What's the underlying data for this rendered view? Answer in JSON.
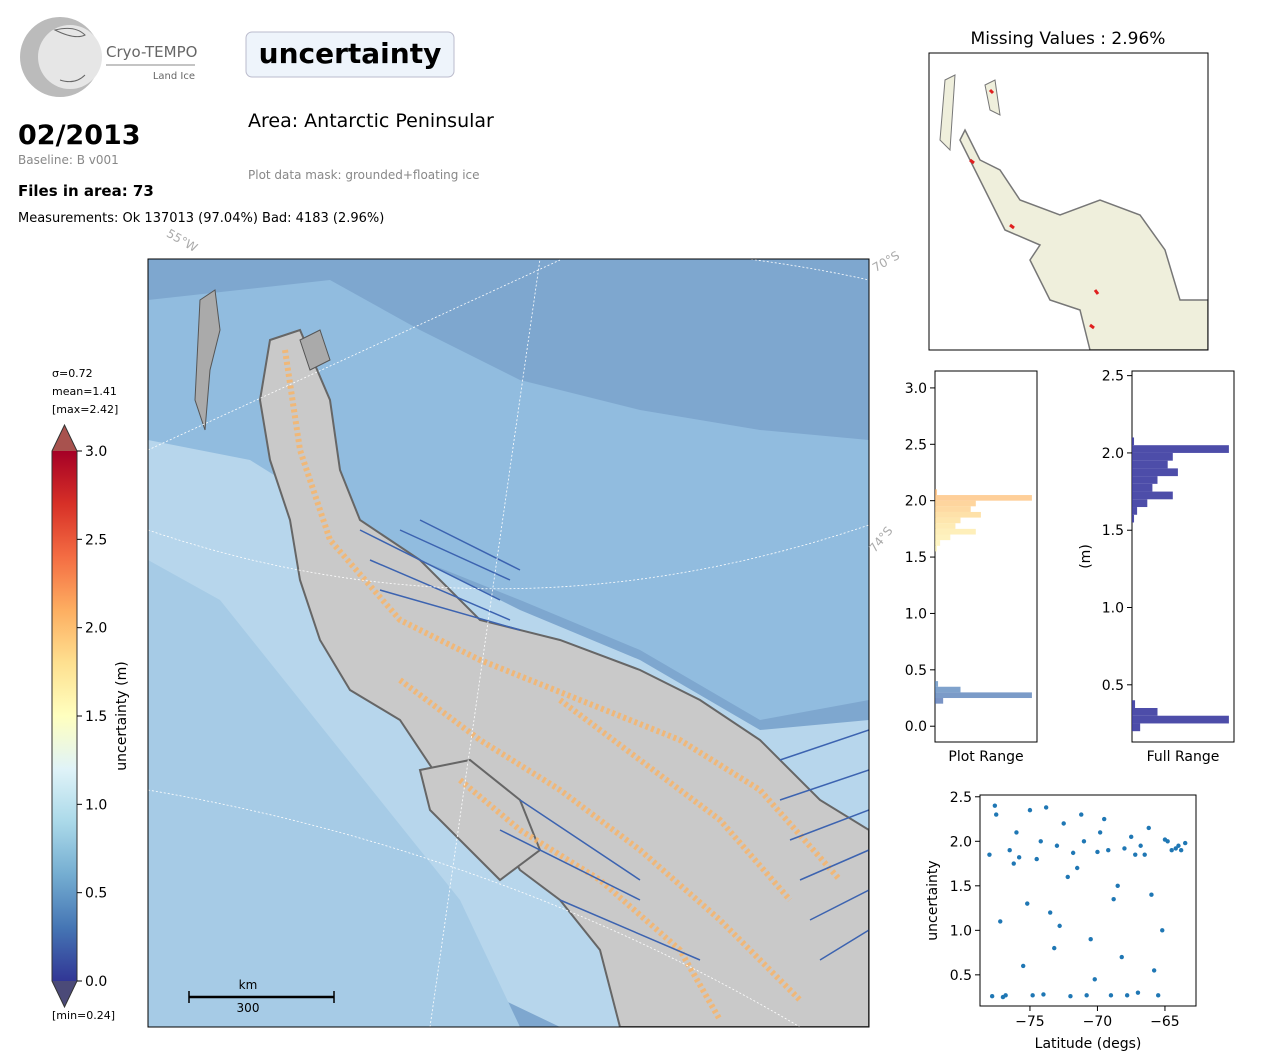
{
  "header": {
    "logo_title": "Cryo-TEMPO",
    "logo_subtitle": "Land Ice",
    "parameter": "uncertainty",
    "date": "02/2013",
    "baseline": "Baseline: B v001",
    "files": "Files in area: 73",
    "measurements": "Measurements: Ok 137013 (97.04%) Bad: 4183 (2.96%)",
    "area": "Area: Antarctic Peninsular",
    "mask": "Plot data mask: grounded+floating ice"
  },
  "map": {
    "graticule_labels": [
      "55°W",
      "70°S",
      "74°S"
    ],
    "scale_unit": "km",
    "scale_value": "300"
  },
  "inset": {
    "title": "Missing Values : 2.96%"
  },
  "chart_data": [
    {
      "type": "colorbar",
      "axis_label": "uncertainty (m)",
      "stats": [
        "σ=0.72",
        "mean=1.41",
        "[max=2.42]"
      ],
      "min_label": "[min=0.24]",
      "ylim": [
        0,
        3
      ],
      "yticks": [
        {
          "value": 0,
          "label": "0.0"
        },
        0.5,
        {
          "value": 1,
          "label": "1.0"
        },
        1.5,
        {
          "value": 2,
          "label": "2.0"
        },
        2.5,
        {
          "value": 3,
          "label": "3.0"
        }
      ],
      "colors": [
        "#313695",
        "#4575b4",
        "#74add1",
        "#abd9e9",
        "#e0f3f8",
        "#ffffbf",
        "#fee090",
        "#fdae61",
        "#f46d43",
        "#d73027",
        "#a50026"
      ],
      "over_color": "#a8524e",
      "under_color": "#4b4a78"
    },
    {
      "type": "histogram",
      "orientation": "horizontal",
      "xlabel": "Plot Range",
      "color_by_value": true,
      "alpha": 0.7,
      "ylim": [
        -0.14,
        3.15
      ],
      "yticks": [
        {
          "value": 0,
          "label": "0.0"
        },
        0.5,
        {
          "value": 1,
          "label": "1.0"
        },
        1.5,
        {
          "value": 2,
          "label": "2.0"
        },
        2.5,
        {
          "value": 3,
          "label": "3.0"
        }
      ],
      "xlim": [
        0,
        100
      ],
      "bins": [
        0.2,
        0.25,
        0.3,
        0.35,
        0.4,
        0.45,
        0.5,
        0.55,
        0.6,
        0.65,
        0.7,
        0.75,
        0.8,
        0.85,
        0.9,
        0.95,
        1.0,
        1.05,
        1.1,
        1.15,
        1.2,
        1.25,
        1.3,
        1.35,
        1.4,
        1.45,
        1.5,
        1.55,
        1.6,
        1.65,
        1.7,
        1.75,
        1.8,
        1.85,
        1.9,
        1.95,
        2.0,
        2.05,
        2.1
      ],
      "counts": [
        8,
        95,
        25,
        3,
        0,
        0,
        0,
        0,
        0,
        0,
        0,
        0,
        0,
        0,
        0,
        0,
        0,
        0,
        0,
        0,
        0,
        0,
        0,
        0,
        0,
        0,
        0,
        2,
        5,
        15,
        40,
        20,
        25,
        45,
        35,
        40,
        95,
        2
      ]
    },
    {
      "type": "histogram",
      "orientation": "horizontal",
      "xlabel": "Full Range",
      "ylabel": "(m)",
      "color": "#3a3aa0",
      "ylim": [
        0.13,
        2.53
      ],
      "yticks": [
        0.5,
        {
          "value": 1,
          "label": "1.0"
        },
        1.5,
        {
          "value": 2,
          "label": "2.0"
        },
        2.5
      ],
      "xlim": [
        0,
        100
      ],
      "bins": [
        0.2,
        0.25,
        0.3,
        0.35,
        0.4,
        0.45,
        0.5,
        0.55,
        0.6,
        0.65,
        0.7,
        0.75,
        0.8,
        0.85,
        0.9,
        0.95,
        1.0,
        1.05,
        1.1,
        1.15,
        1.2,
        1.25,
        1.3,
        1.35,
        1.4,
        1.45,
        1.5,
        1.55,
        1.6,
        1.65,
        1.7,
        1.75,
        1.8,
        1.85,
        1.9,
        1.95,
        2.0,
        2.05,
        2.1
      ],
      "counts": [
        8,
        95,
        25,
        3,
        0,
        0,
        0,
        0,
        0,
        0,
        0,
        0,
        0,
        0,
        0,
        0,
        0,
        0,
        0,
        0,
        0,
        0,
        0,
        0,
        0,
        0,
        0,
        2,
        5,
        15,
        40,
        20,
        25,
        45,
        35,
        40,
        95,
        2
      ]
    },
    {
      "type": "scatter",
      "xlabel": "Latitude (degs)",
      "ylabel": "uncertainty",
      "color": "#1f77b4",
      "xlim": [
        -78.7,
        -62.7
      ],
      "ylim": [
        0.15,
        2.52
      ],
      "xticks": [
        {
          "value": -75,
          "label": "−75"
        },
        {
          "value": -70,
          "label": "−70"
        },
        {
          "value": -65,
          "label": "−65"
        }
      ],
      "yticks": [
        0.5,
        {
          "value": 1,
          "label": "1.0"
        },
        1.5,
        {
          "value": 2,
          "label": "2.0"
        },
        2.5
      ],
      "x": [
        -78,
        -77.5,
        -77,
        -76.5,
        -76,
        -75.5,
        -75,
        -74.5,
        -74,
        -73.5,
        -73,
        -72.5,
        -72,
        -71.5,
        -71,
        -70.5,
        -70,
        -69.5,
        -69,
        -68.5,
        -68,
        -67.5,
        -67,
        -66.5,
        -66,
        -65.5,
        -65,
        -64.5,
        -64,
        -63.5,
        -77.8,
        -77.2,
        -76.2,
        -75.2,
        -74.2,
        -73.2,
        -72.2,
        -71.2,
        -70.2,
        -69.2,
        -68.2,
        -67.2,
        -66.2,
        -65.2,
        -64.2,
        -77.6,
        -76.8,
        -75.8,
        -74.8,
        -73.8,
        -72.8,
        -71.8,
        -70.8,
        -69.8,
        -68.8,
        -67.8,
        -66.8,
        -65.8,
        -64.8,
        -63.8
      ],
      "y": [
        1.85,
        2.3,
        0.25,
        1.9,
        2.1,
        0.6,
        2.35,
        1.8,
        0.28,
        1.2,
        1.95,
        2.2,
        0.26,
        1.7,
        2.0,
        0.9,
        1.88,
        2.25,
        0.27,
        1.5,
        1.92,
        2.05,
        0.3,
        1.85,
        1.4,
        0.27,
        2.02,
        1.9,
        1.95,
        1.98,
        0.26,
        1.1,
        1.75,
        1.3,
        2.0,
        0.8,
        1.6,
        2.3,
        0.45,
        1.9,
        0.7,
        1.85,
        2.15,
        1.0,
        1.92,
        2.4,
        0.27,
        1.82,
        0.27,
        2.38,
        1.05,
        1.87,
        0.27,
        2.1,
        1.35,
        0.27,
        1.95,
        0.55,
        2.0,
        1.9
      ]
    }
  ]
}
